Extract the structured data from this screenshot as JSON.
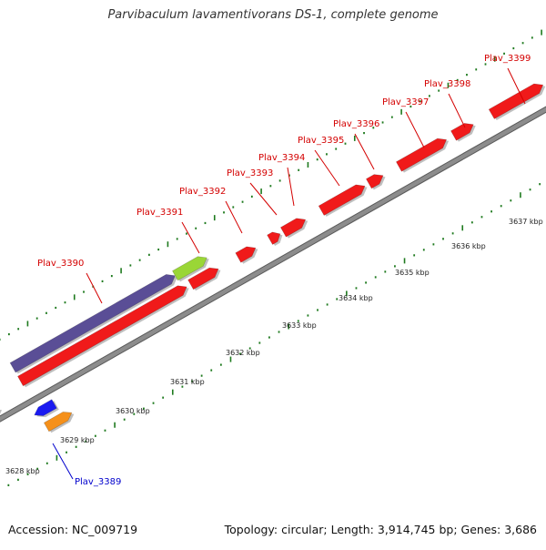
{
  "title": "Parvibaculum lavamentivorans DS-1, complete genome",
  "footer": {
    "accession": "Accession: NC_009719",
    "summary": "Topology: circular; Length: 3,914,745 bp; Genes: 3,686"
  },
  "colors": {
    "backbone": "#8c8c8c",
    "tick": "#1e7a1e",
    "gene_red": "#f01a1a",
    "gene_red_dark": "#a00000",
    "gene_purple": "#5a4e96",
    "gene_lime": "#9ad636",
    "gene_blue": "#1a1af0",
    "gene_orange": "#f5901a",
    "label_red": "#d40000",
    "label_blue": "#0000cc"
  },
  "scale_labels": [
    "3628 kbp",
    "3629 kbp",
    "3630 kbp",
    "3631 kbp",
    "3632 kbp",
    "3633 kbp",
    "3634 kbp",
    "3635 kbp",
    "3636 kbp",
    "3637 kbp"
  ],
  "gene_labels": [
    {
      "text": "Plav_3389",
      "color": "blue"
    },
    {
      "text": "Plav_3390",
      "color": "red"
    },
    {
      "text": "Plav_3391",
      "color": "red"
    },
    {
      "text": "Plav_3392",
      "color": "red"
    },
    {
      "text": "Plav_3393",
      "color": "red"
    },
    {
      "text": "Plav_3394",
      "color": "red"
    },
    {
      "text": "Plav_3395",
      "color": "red"
    },
    {
      "text": "Plav_3396",
      "color": "red"
    },
    {
      "text": "Plav_3397",
      "color": "red"
    },
    {
      "text": "Plav_3398",
      "color": "red"
    },
    {
      "text": "Plav_3399",
      "color": "red"
    }
  ]
}
